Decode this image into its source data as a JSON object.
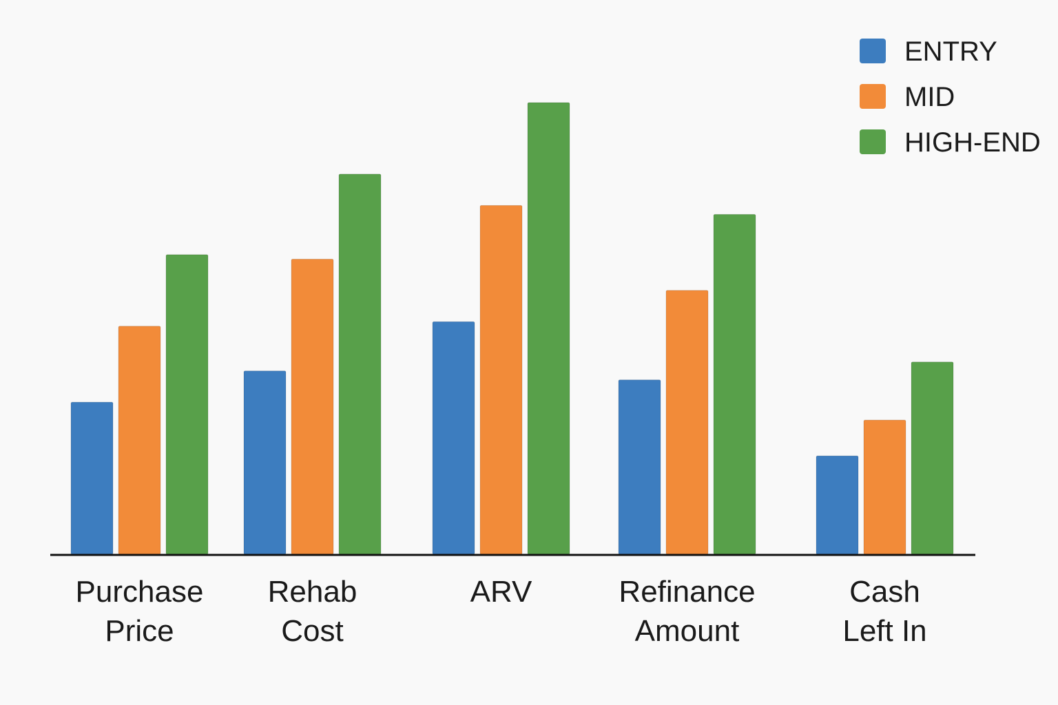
{
  "chart_data": {
    "type": "bar",
    "categories": [
      [
        "Purchase",
        "Price"
      ],
      [
        "Rehab",
        "Cost"
      ],
      [
        "ARV"
      ],
      [
        "Refinance",
        "Amount"
      ],
      [
        "Cash",
        "Left In"
      ]
    ],
    "series": [
      {
        "name": "ENTRY",
        "color": "#3d7dbf",
        "values": [
          34,
          41,
          52,
          39,
          22
        ]
      },
      {
        "name": "MID",
        "color": "#f28b39",
        "values": [
          51,
          66,
          78,
          59,
          30
        ]
      },
      {
        "name": "HIGH-END",
        "color": "#58a04a",
        "values": [
          67,
          85,
          101,
          76,
          43
        ]
      }
    ],
    "ylim": [
      0,
      101
    ],
    "legend_position": "top-right",
    "axes_visible": false,
    "gridlines": false
  }
}
